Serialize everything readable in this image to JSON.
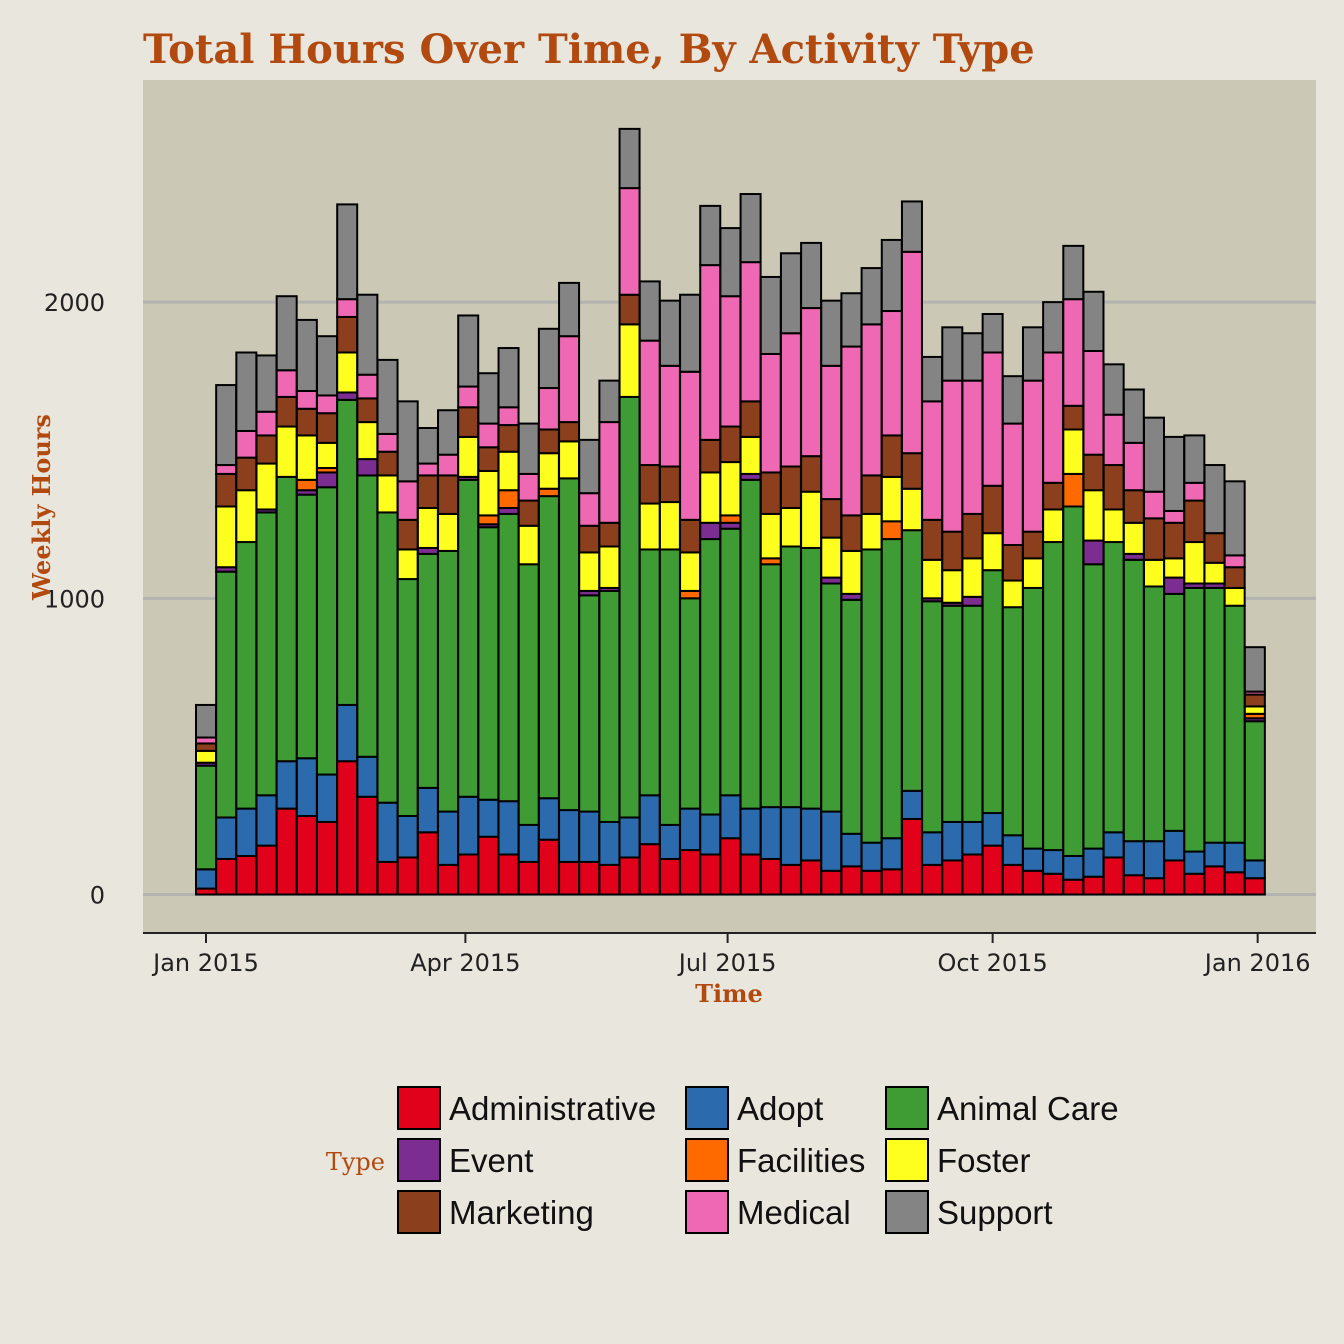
{
  "chart_data": {
    "type": "bar",
    "stacked": true,
    "title": "Total Hours Over Time, By Activity Type",
    "xlabel": "Time",
    "ylabel": "Weekly Hours",
    "ylim": [
      -130,
      2750
    ],
    "yticks": [
      0,
      1000,
      2000
    ],
    "xticks": [
      {
        "label": "Jan 2015",
        "week": 0
      },
      {
        "label": "Apr 2015",
        "week": 12.86
      },
      {
        "label": "Jul 2015",
        "week": 25.86
      },
      {
        "label": "Oct 2015",
        "week": 39
      },
      {
        "label": "Jan 2016",
        "week": 52.14
      }
    ],
    "x_first_week": "2014-12-28",
    "grid": true,
    "legend_title": "Type",
    "legend_position": "bottom",
    "series": [
      {
        "name": "Administrative",
        "color": "#e2011a",
        "values": [
          20,
          120,
          130,
          165,
          290,
          265,
          245,
          450,
          330,
          110,
          125,
          210,
          100,
          135,
          195,
          135,
          110,
          185,
          110,
          110,
          100,
          125,
          170,
          120,
          150,
          135,
          190,
          135,
          120,
          100,
          115,
          80,
          95,
          80,
          85,
          255,
          100,
          115,
          135,
          165,
          100,
          80,
          70,
          50,
          60,
          125,
          65,
          55,
          115,
          70,
          95,
          75,
          55
        ]
      },
      {
        "name": "Adopt",
        "color": "#2b6bad",
        "values": [
          65,
          140,
          160,
          170,
          160,
          195,
          160,
          190,
          135,
          200,
          140,
          150,
          180,
          195,
          125,
          180,
          125,
          140,
          175,
          170,
          145,
          135,
          165,
          115,
          140,
          135,
          145,
          155,
          175,
          195,
          175,
          200,
          110,
          95,
          105,
          95,
          110,
          130,
          110,
          110,
          100,
          75,
          80,
          80,
          95,
          85,
          115,
          125,
          100,
          75,
          80,
          100,
          60
        ]
      },
      {
        "name": "Animal Care",
        "color": "#3f9c35",
        "values": [
          350,
          830,
          900,
          955,
          960,
          890,
          970,
          1030,
          950,
          980,
          800,
          790,
          880,
          1070,
          920,
          970,
          880,
          1020,
          1120,
          730,
          780,
          1420,
          830,
          930,
          710,
          930,
          900,
          1110,
          820,
          880,
          880,
          770,
          790,
          990,
          1010,
          880,
          780,
          730,
          730,
          820,
          770,
          880,
          1040,
          1180,
          960,
          980,
          950,
          860,
          800,
          890,
          860,
          800,
          470
        ]
      },
      {
        "name": "Event",
        "color": "#7b2d92",
        "values": [
          10,
          15,
          0,
          10,
          0,
          15,
          50,
          25,
          55,
          0,
          0,
          20,
          0,
          10,
          10,
          20,
          0,
          0,
          0,
          15,
          10,
          0,
          0,
          0,
          0,
          55,
          20,
          20,
          0,
          0,
          0,
          20,
          20,
          0,
          0,
          0,
          10,
          10,
          30,
          0,
          0,
          0,
          0,
          0,
          80,
          0,
          20,
          0,
          55,
          15,
          15,
          0,
          10
        ]
      },
      {
        "name": "Facilities",
        "color": "#ff6a00",
        "values": [
          0,
          0,
          0,
          0,
          0,
          35,
          15,
          0,
          0,
          0,
          0,
          0,
          0,
          0,
          30,
          60,
          0,
          25,
          0,
          0,
          0,
          0,
          0,
          0,
          25,
          0,
          25,
          0,
          20,
          0,
          0,
          0,
          0,
          0,
          60,
          0,
          0,
          0,
          0,
          0,
          0,
          0,
          0,
          110,
          0,
          0,
          0,
          0,
          0,
          0,
          0,
          0,
          15
        ]
      },
      {
        "name": "Foster",
        "color": "#ffff1f",
        "values": [
          40,
          205,
          175,
          155,
          170,
          150,
          85,
          135,
          125,
          125,
          100,
          135,
          125,
          135,
          150,
          130,
          130,
          120,
          125,
          130,
          140,
          245,
          155,
          160,
          130,
          170,
          180,
          125,
          150,
          130,
          190,
          135,
          145,
          120,
          150,
          140,
          130,
          110,
          130,
          125,
          90,
          100,
          110,
          150,
          170,
          110,
          105,
          90,
          65,
          140,
          70,
          60,
          25
        ]
      },
      {
        "name": "Marketing",
        "color": "#8b3f1c",
        "values": [
          25,
          110,
          110,
          95,
          100,
          90,
          100,
          120,
          80,
          80,
          100,
          110,
          130,
          100,
          80,
          90,
          85,
          80,
          65,
          90,
          80,
          100,
          130,
          120,
          110,
          110,
          120,
          120,
          140,
          140,
          120,
          130,
          120,
          130,
          140,
          120,
          135,
          130,
          150,
          160,
          120,
          90,
          90,
          80,
          120,
          150,
          110,
          140,
          120,
          140,
          100,
          70,
          40
        ]
      },
      {
        "name": "Medical",
        "color": "#ef68b3",
        "values": [
          20,
          30,
          90,
          80,
          90,
          60,
          60,
          60,
          80,
          60,
          130,
          40,
          70,
          70,
          80,
          60,
          90,
          140,
          290,
          110,
          340,
          360,
          420,
          340,
          500,
          590,
          440,
          470,
          400,
          450,
          500,
          450,
          570,
          510,
          420,
          680,
          400,
          510,
          450,
          450,
          410,
          510,
          440,
          360,
          350,
          170,
          160,
          90,
          40,
          60,
          0,
          40,
          10
        ]
      },
      {
        "name": "Support",
        "color": "#848484",
        "values": [
          110,
          270,
          265,
          190,
          250,
          240,
          200,
          320,
          270,
          250,
          270,
          120,
          150,
          240,
          170,
          200,
          170,
          200,
          180,
          180,
          140,
          200,
          200,
          220,
          260,
          200,
          230,
          230,
          260,
          270,
          220,
          220,
          180,
          190,
          240,
          170,
          150,
          180,
          160,
          130,
          160,
          180,
          170,
          180,
          200,
          170,
          180,
          250,
          250,
          160,
          230,
          250,
          150
        ]
      }
    ]
  }
}
